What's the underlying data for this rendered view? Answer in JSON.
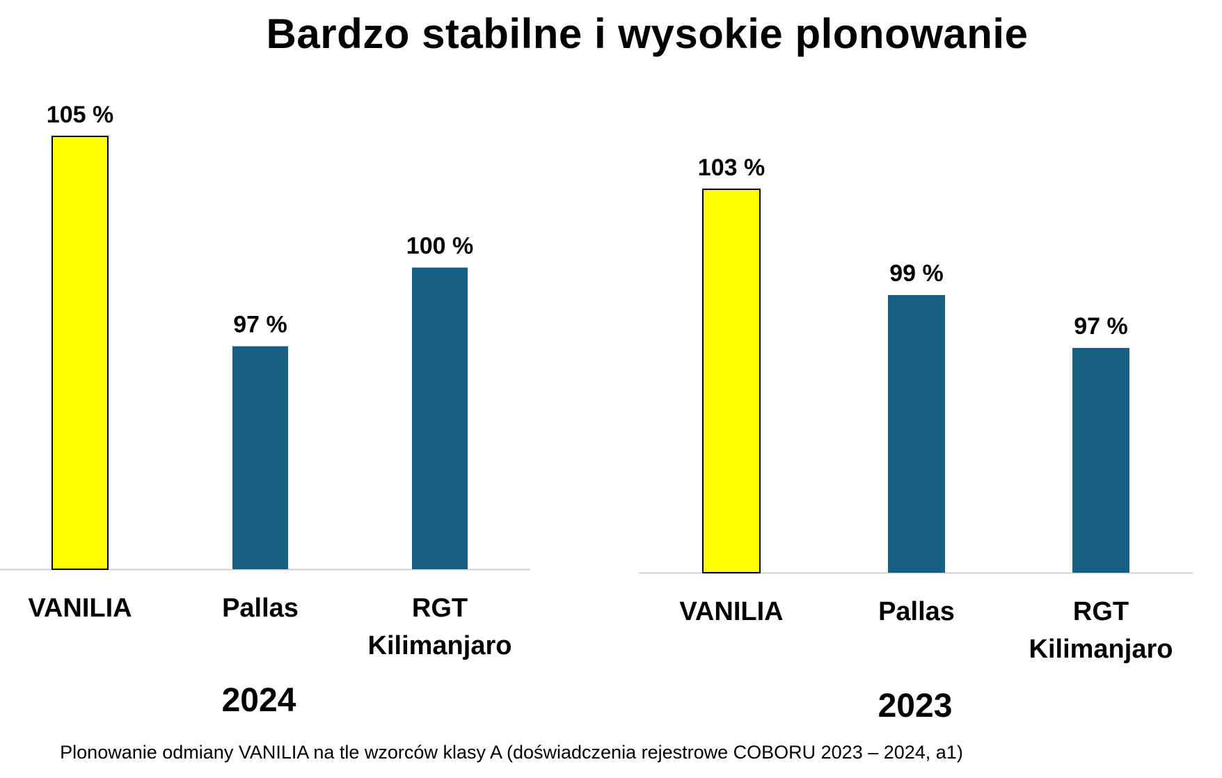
{
  "title": "Bardzo stabilne i wysokie plonowanie",
  "caption": "Plonowanie odmiany VANILIA na tle wzorców klasy A (doświadczenia rejestrowe COBORU 2023 – 2024, a1)",
  "colors": {
    "highlight": "#FFFF00",
    "highlight_stroke": "#000000",
    "bar": "#176083",
    "axis": "#d0d0d0"
  },
  "chart_data": [
    {
      "type": "bar",
      "year": "2024",
      "categories": [
        [
          "VANILIA"
        ],
        [
          "Pallas"
        ],
        [
          "RGT",
          "Kilimanjaro"
        ]
      ],
      "values": [
        105,
        97,
        100
      ],
      "labels": [
        "105 %",
        "97 %",
        "100 %"
      ],
      "highlight_index": 0,
      "ylim": [
        88.5,
        105
      ]
    },
    {
      "type": "bar",
      "year": "2023",
      "categories": [
        [
          "VANILIA"
        ],
        [
          "Pallas"
        ],
        [
          "RGT",
          "Kilimanjaro"
        ]
      ],
      "values": [
        103,
        99,
        97
      ],
      "labels": [
        "103 %",
        "99 %",
        "97 %"
      ],
      "highlight_index": 0,
      "ylim": [
        88.5,
        105
      ]
    }
  ]
}
